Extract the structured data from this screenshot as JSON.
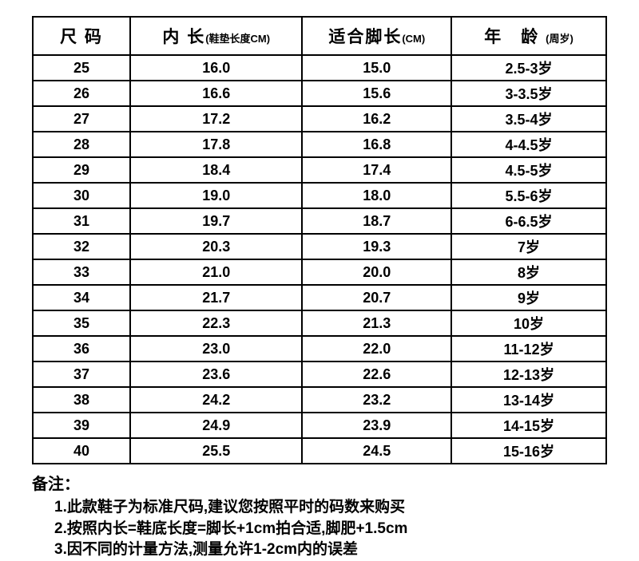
{
  "table": {
    "headers": {
      "size": "尺 码",
      "inner": "内 长",
      "inner_sub": "(鞋垫长度CM)",
      "foot": "适合脚长",
      "foot_sub": "(CM)",
      "age": "年　龄",
      "age_sub": "(周岁)"
    },
    "rows": [
      {
        "size": "25",
        "inner": "16.0",
        "foot": "15.0",
        "age": "2.5-3岁"
      },
      {
        "size": "26",
        "inner": "16.6",
        "foot": "15.6",
        "age": "3-3.5岁"
      },
      {
        "size": "27",
        "inner": "17.2",
        "foot": "16.2",
        "age": "3.5-4岁"
      },
      {
        "size": "28",
        "inner": "17.8",
        "foot": "16.8",
        "age": "4-4.5岁"
      },
      {
        "size": "29",
        "inner": "18.4",
        "foot": "17.4",
        "age": "4.5-5岁"
      },
      {
        "size": "30",
        "inner": "19.0",
        "foot": "18.0",
        "age": "5.5-6岁"
      },
      {
        "size": "31",
        "inner": "19.7",
        "foot": "18.7",
        "age": "6-6.5岁"
      },
      {
        "size": "32",
        "inner": "20.3",
        "foot": "19.3",
        "age": "7岁"
      },
      {
        "size": "33",
        "inner": "21.0",
        "foot": "20.0",
        "age": "8岁"
      },
      {
        "size": "34",
        "inner": "21.7",
        "foot": "20.7",
        "age": "9岁"
      },
      {
        "size": "35",
        "inner": "22.3",
        "foot": "21.3",
        "age": "10岁"
      },
      {
        "size": "36",
        "inner": "23.0",
        "foot": "22.0",
        "age": "11-12岁"
      },
      {
        "size": "37",
        "inner": "23.6",
        "foot": "22.6",
        "age": "12-13岁"
      },
      {
        "size": "38",
        "inner": "24.2",
        "foot": "23.2",
        "age": "13-14岁"
      },
      {
        "size": "39",
        "inner": "24.9",
        "foot": "23.9",
        "age": "14-15岁"
      },
      {
        "size": "40",
        "inner": "25.5",
        "foot": "24.5",
        "age": "15-16岁"
      }
    ]
  },
  "notes": {
    "title": "备注：",
    "items": [
      "1.此款鞋子为标准尺码,建议您按照平时的码数来购买",
      "2.按照内长=鞋底长度=脚长+1cm拍合适,脚肥+1.5cm",
      "3.因不同的计量方法,测量允许1-2cm内的误差"
    ]
  }
}
